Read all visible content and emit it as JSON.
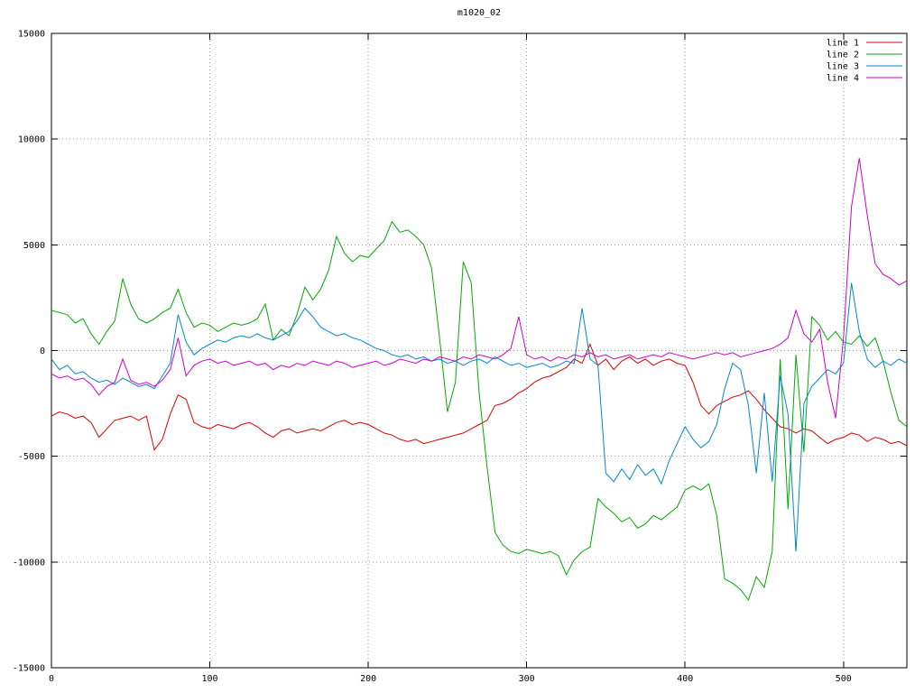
{
  "title": "m1020_02",
  "chart_data": {
    "type": "line",
    "title": "m1020_02",
    "xlabel": "",
    "ylabel": "",
    "xlim": [
      0,
      540
    ],
    "ylim": [
      -15000,
      15000
    ],
    "xticks": [
      0,
      100,
      200,
      300,
      400,
      500
    ],
    "yticks": [
      -15000,
      -10000,
      -5000,
      0,
      5000,
      10000,
      15000
    ],
    "grid": true,
    "legend_position": "top-right",
    "x": [
      0,
      5,
      10,
      15,
      20,
      25,
      30,
      35,
      40,
      45,
      50,
      55,
      60,
      65,
      70,
      75,
      80,
      85,
      90,
      95,
      100,
      105,
      110,
      115,
      120,
      125,
      130,
      135,
      140,
      145,
      150,
      155,
      160,
      165,
      170,
      175,
      180,
      185,
      190,
      195,
      200,
      205,
      210,
      215,
      220,
      225,
      230,
      235,
      240,
      245,
      250,
      255,
      260,
      265,
      270,
      275,
      280,
      285,
      290,
      295,
      300,
      305,
      310,
      315,
      320,
      325,
      330,
      335,
      340,
      345,
      350,
      355,
      360,
      365,
      370,
      375,
      380,
      385,
      390,
      395,
      400,
      405,
      410,
      415,
      420,
      425,
      430,
      435,
      440,
      445,
      450,
      455,
      460,
      465,
      470,
      475,
      480,
      485,
      490,
      495,
      500,
      505,
      510,
      515,
      520,
      525,
      530,
      535,
      540
    ],
    "series": [
      {
        "name": "line 1",
        "color": "#dd0000",
        "values": [
          -3100,
          -2900,
          -3000,
          -3200,
          -3100,
          -3400,
          -4100,
          -3700,
          -3300,
          -3200,
          -3100,
          -3300,
          -3100,
          -4700,
          -4200,
          -3000,
          -2100,
          -2300,
          -3400,
          -3600,
          -3700,
          -3500,
          -3600,
          -3700,
          -3500,
          -3400,
          -3600,
          -3900,
          -4100,
          -3800,
          -3700,
          -3900,
          -3800,
          -3700,
          -3800,
          -3600,
          -3400,
          -3300,
          -3500,
          -3400,
          -3500,
          -3700,
          -3900,
          -4000,
          -4200,
          -4300,
          -4200,
          -4400,
          -4300,
          -4200,
          -4100,
          -4000,
          -3900,
          -3700,
          -3500,
          -3300,
          -2600,
          -2500,
          -2300,
          -2000,
          -1800,
          -1500,
          -1300,
          -1200,
          -1000,
          -800,
          -400,
          -600,
          300,
          -700,
          -400,
          -900,
          -500,
          -300,
          -600,
          -400,
          -700,
          -500,
          -400,
          -600,
          -700,
          -1500,
          -2600,
          -3000,
          -2600,
          -2400,
          -2200,
          -2100,
          -1900,
          -2300,
          -2800,
          -3200,
          -3600,
          -3700,
          -3900,
          -3700,
          -3800,
          -4100,
          -4400,
          -4200,
          -4100,
          -3900,
          -4000,
          -4300,
          -4100,
          -4200,
          -4400,
          -4300,
          -4500
        ]
      },
      {
        "name": "line 2",
        "color": "#00aa00",
        "values": [
          1900,
          1800,
          1700,
          1300,
          1500,
          800,
          300,
          900,
          1400,
          3400,
          2200,
          1500,
          1300,
          1500,
          1800,
          2000,
          2900,
          1800,
          1100,
          1300,
          1200,
          900,
          1100,
          1300,
          1200,
          1300,
          1500,
          2200,
          500,
          1000,
          700,
          1700,
          3000,
          2400,
          2900,
          3800,
          5400,
          4600,
          4200,
          4500,
          4400,
          4800,
          5200,
          6100,
          5600,
          5700,
          5400,
          5000,
          3900,
          600,
          -2900,
          -1500,
          4200,
          3200,
          -2000,
          -5500,
          -8600,
          -9200,
          -9500,
          -9600,
          -9400,
          -9500,
          -9600,
          -9500,
          -9700,
          -10600,
          -9900,
          -9500,
          -9300,
          -7000,
          -7400,
          -7700,
          -8100,
          -7900,
          -8400,
          -8200,
          -7800,
          -8000,
          -7700,
          -7400,
          -6600,
          -6400,
          -6600,
          -6300,
          -7800,
          -10800,
          -11000,
          -11300,
          -11800,
          -10700,
          -11200,
          -9500,
          -400,
          -7500,
          -200,
          -4800,
          1600,
          1200,
          500,
          900,
          400,
          300,
          700,
          200,
          600,
          -500,
          -2000,
          -3300,
          -3600
        ]
      },
      {
        "name": "line 3",
        "color": "#0088cc",
        "values": [
          -400,
          -900,
          -700,
          -1100,
          -1000,
          -1300,
          -1500,
          -1400,
          -1600,
          -1300,
          -1500,
          -1700,
          -1600,
          -1800,
          -1200,
          -600,
          1700,
          400,
          -200,
          100,
          300,
          500,
          400,
          600,
          700,
          600,
          800,
          600,
          500,
          700,
          900,
          1400,
          2000,
          1600,
          1100,
          900,
          700,
          800,
          600,
          500,
          300,
          100,
          0,
          -200,
          -300,
          -200,
          -400,
          -300,
          -500,
          -400,
          -600,
          -500,
          -700,
          -500,
          -400,
          -600,
          -300,
          -500,
          -700,
          -600,
          -800,
          -700,
          -600,
          -800,
          -700,
          -500,
          -600,
          2000,
          -400,
          -700,
          -5800,
          -6200,
          -5600,
          -6100,
          -5400,
          -5900,
          -5600,
          -6300,
          -5200,
          -4400,
          -3600,
          -4200,
          -4600,
          -4300,
          -3500,
          -1800,
          -600,
          -900,
          -2600,
          -5800,
          -2000,
          -6200,
          -1200,
          -3000,
          -9500,
          -2500,
          -1700,
          -1300,
          -900,
          -1100,
          -600,
          3200,
          900,
          -400,
          -800,
          -500,
          -700,
          -400,
          -600
        ]
      },
      {
        "name": "line 4",
        "color": "#cc00cc",
        "values": [
          -1100,
          -1300,
          -1200,
          -1400,
          -1300,
          -1600,
          -2100,
          -1700,
          -1500,
          -400,
          -1400,
          -1600,
          -1500,
          -1700,
          -1400,
          -900,
          600,
          -1200,
          -700,
          -500,
          -400,
          -600,
          -500,
          -700,
          -600,
          -500,
          -700,
          -600,
          -900,
          -700,
          -800,
          -600,
          -700,
          -500,
          -600,
          -700,
          -500,
          -600,
          -800,
          -700,
          -600,
          -500,
          -700,
          -600,
          -400,
          -500,
          -600,
          -400,
          -500,
          -300,
          -400,
          -500,
          -300,
          -400,
          -200,
          -300,
          -400,
          -200,
          100,
          1600,
          -200,
          -400,
          -300,
          -500,
          -300,
          -400,
          -200,
          -300,
          -100,
          -300,
          -200,
          -400,
          -300,
          -200,
          -400,
          -300,
          -200,
          -300,
          -100,
          -200,
          -300,
          -400,
          -300,
          -200,
          -100,
          -200,
          -100,
          -300,
          -200,
          -100,
          0,
          100,
          300,
          600,
          1900,
          800,
          400,
          1000,
          -1500,
          -3200,
          600,
          6800,
          9100,
          6400,
          4100,
          3600,
          3400,
          3100,
          3300
        ]
      }
    ]
  }
}
